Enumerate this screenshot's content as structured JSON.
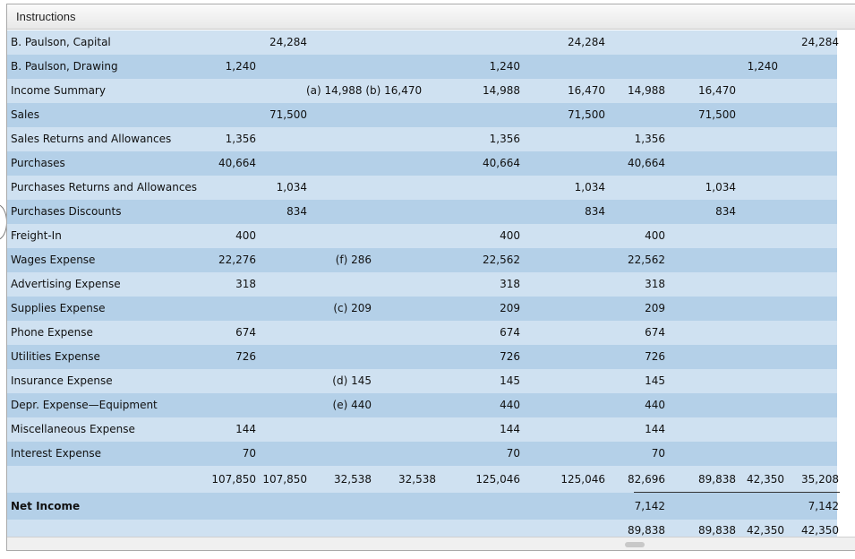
{
  "window": {
    "title": "Instructions"
  },
  "rows": [
    {
      "label": "B. Paulson, Capital",
      "tb_cr": "24,284",
      "atb_cr": "24,284",
      "bs_cr": "24,284"
    },
    {
      "label": "B. Paulson, Drawing",
      "tb_dr": "1,240",
      "atb_dr": "1,240",
      "bs_dr": "1,240"
    },
    {
      "label": "Income Summary",
      "adj": "(a) 14,988  (b) 16,470",
      "atb_dr": "14,988",
      "atb_cr": "16,470",
      "is_dr": "14,988",
      "is_cr": "16,470"
    },
    {
      "label": "Sales",
      "tb_cr": "71,500",
      "atb_cr": "71,500",
      "is_cr": "71,500"
    },
    {
      "label": "Sales Returns and Allowances",
      "tb_dr": "1,356",
      "atb_dr": "1,356",
      "is_dr": "1,356"
    },
    {
      "label": "Purchases",
      "tb_dr": "40,664",
      "atb_dr": "40,664",
      "is_dr": "40,664"
    },
    {
      "label": "Purchases Returns and Allowances",
      "tb_cr": "1,034",
      "atb_cr": "1,034",
      "is_cr": "1,034"
    },
    {
      "label": "Purchases Discounts",
      "tb_cr": "834",
      "atb_cr": "834",
      "is_cr": "834"
    },
    {
      "label": "Freight-In",
      "tb_dr": "400",
      "atb_dr": "400",
      "is_dr": "400"
    },
    {
      "label": "Wages Expense",
      "tb_dr": "22,276",
      "adj_dr": "(f) 286",
      "atb_dr": "22,562",
      "is_dr": "22,562"
    },
    {
      "label": "Advertising Expense",
      "tb_dr": "318",
      "atb_dr": "318",
      "is_dr": "318"
    },
    {
      "label": "Supplies Expense",
      "adj_dr": "(c) 209",
      "atb_dr": "209",
      "is_dr": "209"
    },
    {
      "label": "Phone Expense",
      "tb_dr": "674",
      "atb_dr": "674",
      "is_dr": "674"
    },
    {
      "label": "Utilities Expense",
      "tb_dr": "726",
      "atb_dr": "726",
      "is_dr": "726"
    },
    {
      "label": "Insurance Expense",
      "adj_dr": "(d) 145",
      "atb_dr": "145",
      "is_dr": "145"
    },
    {
      "label": "Depr. Expense—Equipment",
      "adj_dr": "(e) 440",
      "atb_dr": "440",
      "is_dr": "440"
    },
    {
      "label": "Miscellaneous Expense",
      "tb_dr": "144",
      "atb_dr": "144",
      "is_dr": "144"
    },
    {
      "label": "Interest Expense",
      "tb_dr": "70",
      "atb_dr": "70",
      "is_dr": "70"
    }
  ],
  "totals": {
    "tb_dr": "107,850",
    "tb_cr": "107,850",
    "adj_dr": "32,538",
    "adj_cr": "32,538",
    "atb_dr": "125,046",
    "atb_cr": "125,046",
    "is_dr": "82,696",
    "is_cr": "89,838",
    "bs_dr": "42,350",
    "bs_cr": "35,208"
  },
  "net_income": {
    "label": "Net Income",
    "is_dr": "7,142",
    "bs_cr": "7,142"
  },
  "final": {
    "is_dr": "89,838",
    "is_cr": "89,838",
    "bs_dr": "42,350",
    "bs_cr": "42,350"
  }
}
